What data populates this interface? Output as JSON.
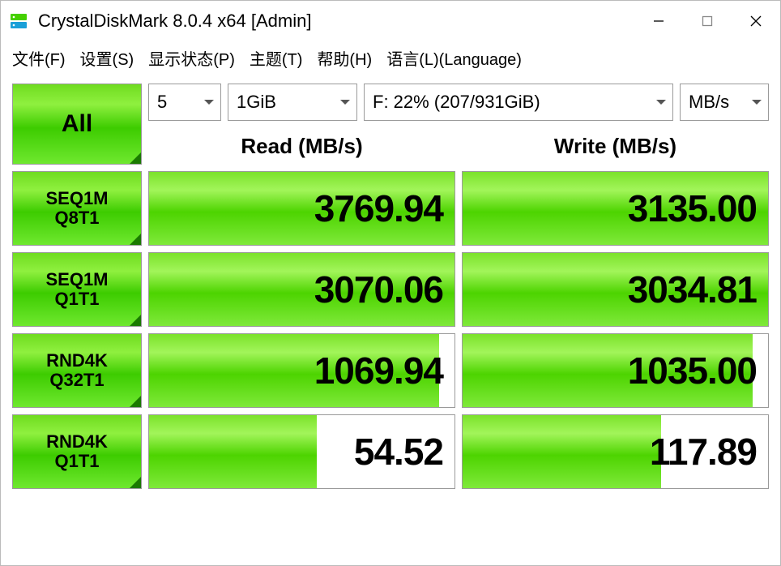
{
  "window": {
    "title": "CrystalDiskMark 8.0.4 x64 [Admin]",
    "icon_colors": {
      "top": "#45d000",
      "bottom": "#1aa0d8"
    }
  },
  "menu": {
    "file": "文件(F)",
    "settings": "设置(S)",
    "display": "显示状态(P)",
    "theme": "主题(T)",
    "help": "帮助(H)",
    "language": "语言(L)(Language)"
  },
  "controls": {
    "runs": "5",
    "size": "1GiB",
    "drive": "F: 22% (207/931GiB)",
    "unit": "MB/s"
  },
  "headers": {
    "read": "Read (MB/s)",
    "write": "Write (MB/s)"
  },
  "buttons": {
    "all": "All",
    "tests": [
      {
        "line1": "SEQ1M",
        "line2": "Q8T1"
      },
      {
        "line1": "SEQ1M",
        "line2": "Q1T1"
      },
      {
        "line1": "RND4K",
        "line2": "Q32T1"
      },
      {
        "line1": "RND4K",
        "line2": "Q1T1"
      }
    ]
  },
  "results": {
    "rows": [
      {
        "read": "3769.94",
        "read_pct": 100,
        "write": "3135.00",
        "write_pct": 100
      },
      {
        "read": "3070.06",
        "read_pct": 100,
        "write": "3034.81",
        "write_pct": 100
      },
      {
        "read": "1069.94",
        "read_pct": 95,
        "write": "1035.00",
        "write_pct": 95
      },
      {
        "read": "54.52",
        "read_pct": 55,
        "write": "117.89",
        "write_pct": 65
      }
    ]
  },
  "style": {
    "bar_gradient": [
      "#7be22b",
      "#a2f55a",
      "#4dd400",
      "#7fe93a"
    ],
    "btn_gradient": [
      "#6fdc1f",
      "#8ff03f",
      "#3dcc00",
      "#6fe82f"
    ],
    "border_color": "#9a9a9a",
    "value_fontsize": 46,
    "header_fontsize": 26,
    "menu_fontsize": 20,
    "title_fontsize": 22
  }
}
